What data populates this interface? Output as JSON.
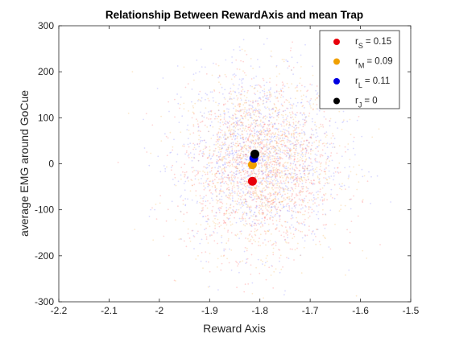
{
  "chart_data": {
    "type": "scatter",
    "title": "Relationship Between RewardAxis and mean Trap",
    "xlabel": "Reward Axis",
    "ylabel": "average EMG around GoCue",
    "xlim": [
      -2.2,
      -1.5
    ],
    "ylim": [
      -300,
      300
    ],
    "xticks": [
      "-2.2",
      "-2.1",
      "-2",
      "-1.9",
      "-1.8",
      "-1.7",
      "-1.6",
      "-1.5"
    ],
    "yticks": [
      "-300",
      "-200",
      "-100",
      "0",
      "100",
      "200",
      "300"
    ],
    "grid": false,
    "legend_position": "top-right",
    "background_cloud": {
      "center_x": -1.8,
      "center_y": 0,
      "spread_x": 0.075,
      "spread_y": 95,
      "colors": [
        "#ff6666",
        "#f5b04a",
        "#7a7aff"
      ]
    },
    "series": [
      {
        "name": "S",
        "label_main": "r",
        "label_sub": "S",
        "label_value": "= 0.15",
        "color": "#e8000b",
        "points": [
          {
            "x": -1.815,
            "y": -38
          }
        ]
      },
      {
        "name": "M",
        "label_main": "r",
        "label_sub": "M",
        "label_value": "= 0.09",
        "color": "#f0a000",
        "points": [
          {
            "x": -1.815,
            "y": -2
          }
        ]
      },
      {
        "name": "L",
        "label_main": "r",
        "label_sub": "L",
        "label_value": "= 0.11",
        "color": "#0000e0",
        "points": [
          {
            "x": -1.812,
            "y": 12
          }
        ]
      },
      {
        "name": "J",
        "label_main": "r",
        "label_sub": "J",
        "label_value": "= 0",
        "color": "#000000",
        "points": [
          {
            "x": -1.81,
            "y": 21
          }
        ]
      }
    ]
  }
}
